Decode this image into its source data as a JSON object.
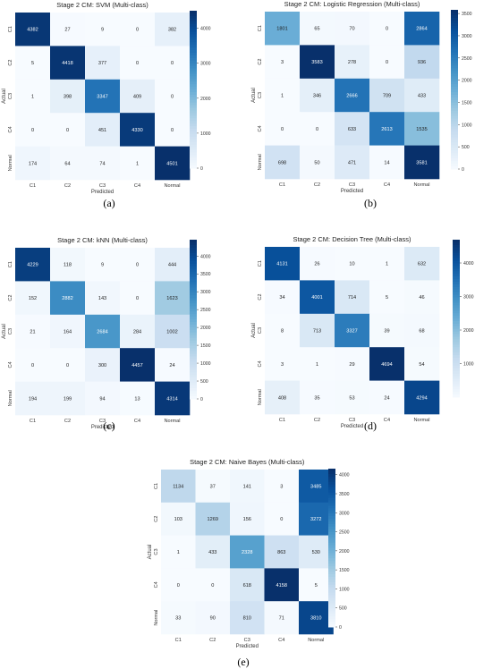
{
  "chart_data": [
    {
      "type": "heatmap",
      "panel": "(a)",
      "title": "Stage 2 CM: SVM (Multi-class)",
      "xlabel": "Predicted",
      "ylabel": "Actual",
      "x_categories": [
        "C1",
        "C2",
        "C3",
        "C4",
        "Normal"
      ],
      "y_categories": [
        "C1",
        "C2",
        "C3",
        "C4",
        "Normal"
      ],
      "values": [
        [
          4382,
          27,
          9,
          0,
          382
        ],
        [
          5,
          4418,
          377,
          0,
          0
        ],
        [
          1,
          398,
          3347,
          409,
          0
        ],
        [
          0,
          0,
          451,
          4330,
          0
        ],
        [
          174,
          64,
          74,
          1,
          4501
        ]
      ],
      "colorbar_ticks": [
        0,
        1000,
        2000,
        3000,
        4000
      ],
      "colorbar_max": 4501
    },
    {
      "type": "heatmap",
      "panel": "(b)",
      "title": "Stage 2 CM: Logistic Regression (Multi-class)",
      "xlabel": "Predicted",
      "ylabel": "Actual",
      "x_categories": [
        "C1",
        "C2",
        "C3",
        "C4",
        "Normal"
      ],
      "y_categories": [
        "C1",
        "C2",
        "C3",
        "C4",
        "Normal"
      ],
      "values": [
        [
          1801,
          65,
          70,
          0,
          2864
        ],
        [
          3,
          3583,
          278,
          0,
          936
        ],
        [
          1,
          346,
          2666,
          709,
          433
        ],
        [
          0,
          0,
          633,
          2613,
          1535
        ],
        [
          698,
          50,
          471,
          14,
          3581
        ]
      ],
      "colorbar_ticks": [
        0,
        500,
        1000,
        1500,
        2000,
        2500,
        3000,
        3500
      ],
      "colorbar_max": 3583
    },
    {
      "type": "heatmap",
      "panel": "(c)",
      "title": "Stage 2 CM: kNN (Multi-class)",
      "xlabel": "Predicted",
      "ylabel": "Actual",
      "x_categories": [
        "C1",
        "C2",
        "C3",
        "C4",
        "Normal"
      ],
      "y_categories": [
        "C1",
        "C2",
        "C3",
        "C4",
        "Normal"
      ],
      "values": [
        [
          4229,
          118,
          9,
          0,
          444
        ],
        [
          152,
          2882,
          143,
          0,
          1623
        ],
        [
          21,
          164,
          2684,
          284,
          1002
        ],
        [
          0,
          0,
          300,
          4457,
          24
        ],
        [
          194,
          199,
          94,
          13,
          4314
        ]
      ],
      "colorbar_ticks": [
        0,
        500,
        1000,
        1500,
        2000,
        2500,
        3000,
        3500,
        4000
      ],
      "colorbar_max": 4457
    },
    {
      "type": "heatmap",
      "panel": "(d)",
      "title": "Stage 2 CM: Decision Tree (Multi-class)",
      "xlabel": "Predicted",
      "ylabel": "Actual",
      "x_categories": [
        "C1",
        "C2",
        "C3",
        "C4",
        "Normal"
      ],
      "y_categories": [
        "C1",
        "C2",
        "C3",
        "C4",
        "Normal"
      ],
      "values": [
        [
          4131,
          26,
          10,
          1,
          632
        ],
        [
          34,
          4001,
          714,
          5,
          46
        ],
        [
          8,
          713,
          3327,
          39,
          68
        ],
        [
          3,
          1,
          29,
          4694,
          54
        ],
        [
          408,
          35,
          53,
          24,
          4294
        ]
      ],
      "colorbar_ticks": [
        1000,
        2000,
        3000,
        4000
      ],
      "colorbar_max": 4694
    },
    {
      "type": "heatmap",
      "panel": "(e)",
      "title": "Stage 2 CM: Naive Bayes (Multi-class)",
      "xlabel": "Predicted",
      "ylabel": "Actual",
      "x_categories": [
        "C1",
        "C2",
        "C3",
        "C4",
        "Normal"
      ],
      "y_categories": [
        "C1",
        "C2",
        "C3",
        "C4",
        "Normal"
      ],
      "values": [
        [
          1134,
          37,
          141,
          3,
          3485
        ],
        [
          103,
          1269,
          156,
          0,
          3272
        ],
        [
          1,
          433,
          2328,
          863,
          530
        ],
        [
          0,
          0,
          618,
          4158,
          5
        ],
        [
          33,
          90,
          810,
          71,
          3810
        ]
      ],
      "colorbar_ticks": [
        0,
        500,
        1000,
        1500,
        2000,
        2500,
        3000,
        3500,
        4000
      ],
      "colorbar_max": 4158
    }
  ],
  "colors": {
    "low": "#f7fbff",
    "high": "#08306b",
    "colormap": "Blues"
  }
}
